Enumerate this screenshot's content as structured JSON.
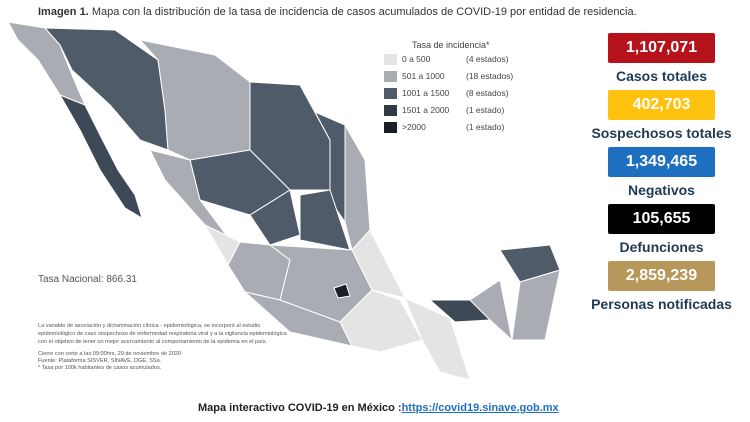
{
  "header": {
    "label": "Imagen 1.",
    "title": "Mapa con la distribución de la tasa de incidencia de casos acumulados de COVID-19 por entidad de residencia."
  },
  "legend": {
    "title": "Tasa de incidencia*",
    "rows": [
      {
        "range": "0 a 500",
        "count": "(4 estados)"
      },
      {
        "range": "501 a 1000",
        "count": "(18 estados)"
      },
      {
        "range": "1001 a 1500",
        "count": "(8 estados)"
      },
      {
        "range": "1501 a 2000",
        "count": "(1 estado)"
      },
      {
        "range": ">2000",
        "count": "(1 estado)"
      }
    ]
  },
  "national_rate": "Tasa Nacional: 866.31",
  "notes": [
    "La variable de asociación y dictaminación clínica - epidemiológica, se incorporó al estudio",
    "epidemiológico de caso sospechoso de enfermedad respiratoria viral y a la vigilancia epidemiológica",
    "con el objetivo de tener un mejor acercamiento al comportamiento de la epidemia en el país.",
    "Cierre con corte a las 09:00hrs, 29 de noviembre de 2020",
    "Fuente: Plataforma SISVER, SINAVE, DGE, SSa.",
    "* Tasa por 100k habitantes de casos acumulados."
  ],
  "stats": [
    {
      "value": "1,107,071",
      "label": "Casos totales"
    },
    {
      "value": "402,703",
      "label": "Sospechosos totales"
    },
    {
      "value": "1,349,465",
      "label": "Negativos"
    },
    {
      "value": "105,655",
      "label": "Defunciones"
    },
    {
      "value": "2,859,239",
      "label": "Personas notificadas"
    }
  ],
  "footer": {
    "text": "Mapa interactivo COVID-19 en México :",
    "link": "https://covid19.sinave.gob.mx"
  }
}
